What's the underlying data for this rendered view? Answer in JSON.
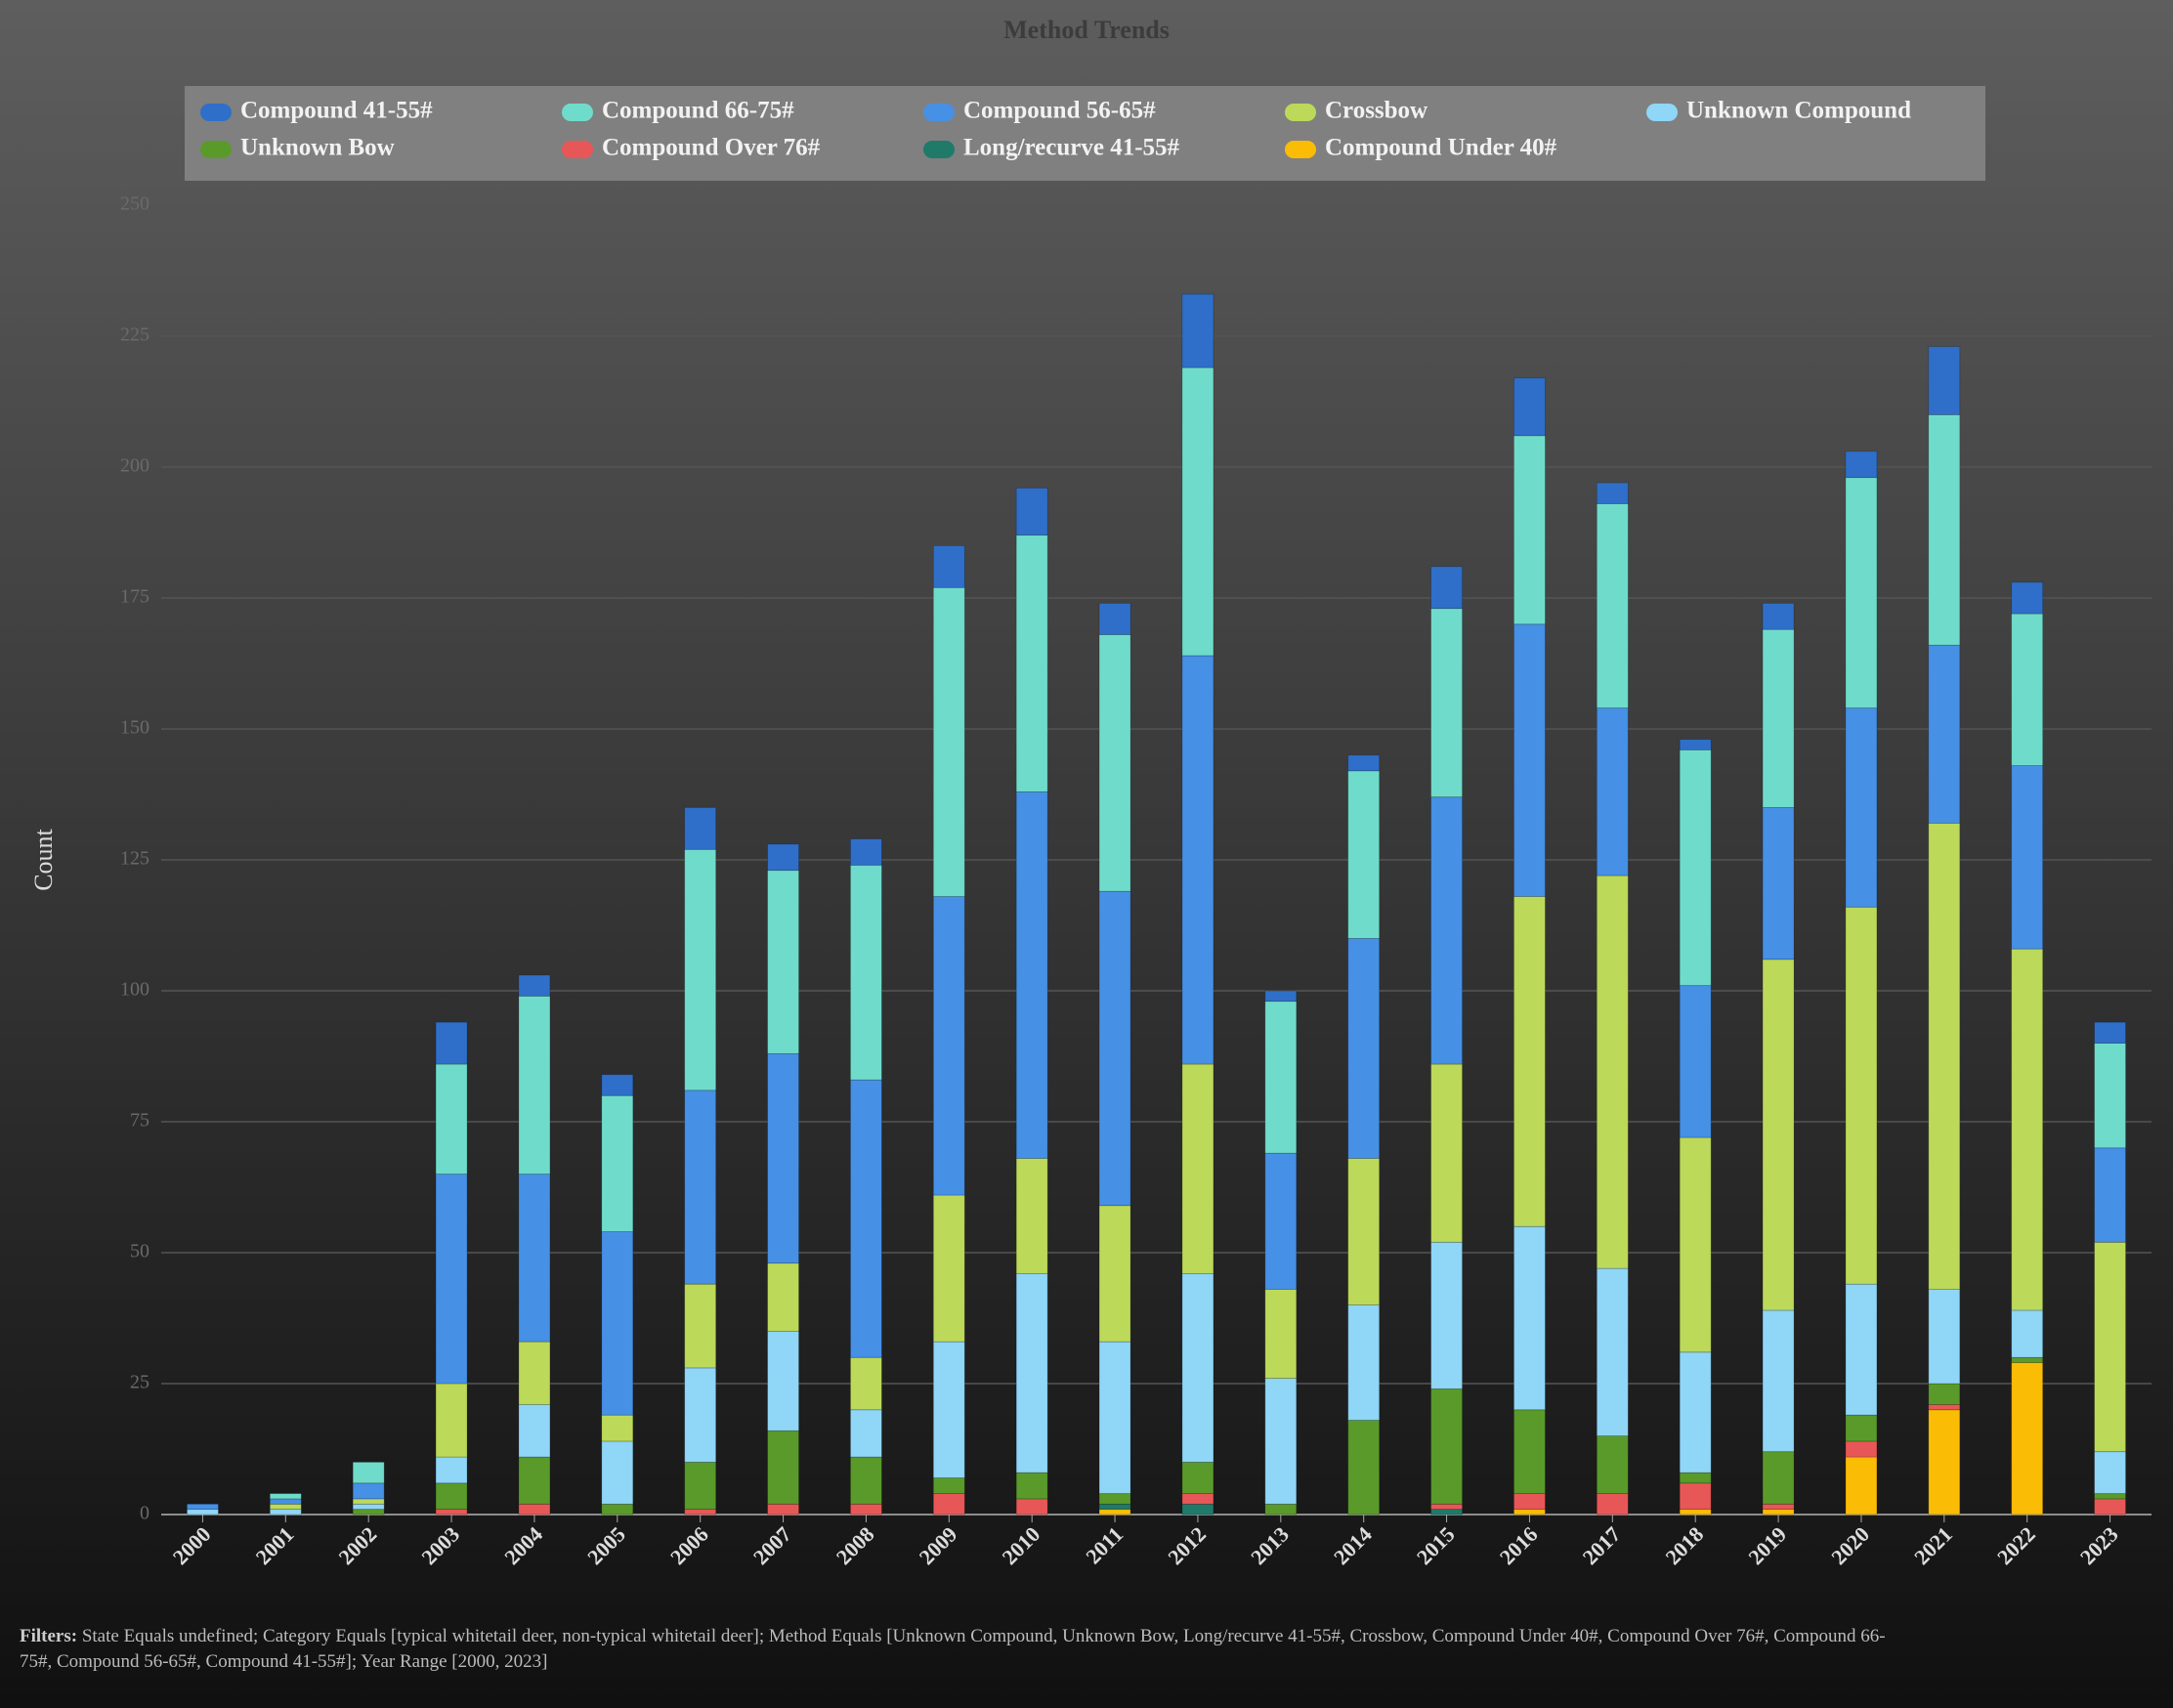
{
  "chart_data": {
    "type": "stacked-bar",
    "title": "Method Trends",
    "y_label": "Count",
    "categories": [
      "2000",
      "2001",
      "2002",
      "2003",
      "2004",
      "2005",
      "2006",
      "2007",
      "2008",
      "2009",
      "2010",
      "2011",
      "2012",
      "2013",
      "2014",
      "2015",
      "2016",
      "2017",
      "2018",
      "2019",
      "2020",
      "2021",
      "2022",
      "2023"
    ],
    "series": [
      {
        "name": "Compound 41-55#",
        "color": "#2f6fc9",
        "values": [
          0,
          0,
          0,
          8,
          4,
          4,
          8,
          5,
          5,
          8,
          9,
          6,
          14,
          2,
          3,
          8,
          11,
          4,
          2,
          5,
          5,
          13,
          6,
          4
        ]
      },
      {
        "name": "Compound 66-75#",
        "color": "#6fdccb",
        "values": [
          0,
          1,
          4,
          21,
          34,
          26,
          46,
          35,
          41,
          59,
          49,
          49,
          55,
          29,
          32,
          36,
          36,
          39,
          45,
          34,
          44,
          44,
          29,
          20
        ]
      },
      {
        "name": "Compound 56-65#",
        "color": "#4690e6",
        "values": [
          1,
          1,
          3,
          40,
          32,
          35,
          37,
          40,
          53,
          57,
          70,
          60,
          78,
          26,
          42,
          51,
          52,
          32,
          29,
          29,
          38,
          34,
          35,
          18
        ]
      },
      {
        "name": "Crossbow",
        "color": "#bcd95a",
        "values": [
          0,
          1,
          1,
          14,
          12,
          5,
          16,
          13,
          10,
          28,
          22,
          26,
          40,
          17,
          28,
          34,
          63,
          75,
          41,
          67,
          72,
          89,
          69,
          40
        ]
      },
      {
        "name": "Unknown Compound",
        "color": "#8fd6f7",
        "values": [
          1,
          1,
          1,
          5,
          10,
          12,
          18,
          19,
          9,
          26,
          38,
          29,
          36,
          24,
          22,
          28,
          35,
          32,
          23,
          27,
          25,
          18,
          9,
          8
        ]
      },
      {
        "name": "Unknown Bow",
        "color": "#5a9a2a",
        "values": [
          0,
          0,
          1,
          5,
          9,
          2,
          9,
          14,
          9,
          3,
          5,
          2,
          6,
          2,
          18,
          22,
          16,
          11,
          2,
          10,
          5,
          4,
          1,
          1
        ]
      },
      {
        "name": "Compound Over 76#",
        "color": "#e85757",
        "values": [
          0,
          0,
          0,
          1,
          2,
          0,
          1,
          2,
          2,
          4,
          3,
          0,
          2,
          0,
          0,
          1,
          3,
          4,
          5,
          1,
          3,
          1,
          0,
          3
        ]
      },
      {
        "name": "Long/recurve 41-55#",
        "color": "#1f7a6a",
        "values": [
          0,
          0,
          0,
          0,
          0,
          0,
          0,
          0,
          0,
          0,
          0,
          1,
          2,
          0,
          0,
          1,
          0,
          0,
          0,
          0,
          0,
          0,
          0,
          0
        ]
      },
      {
        "name": "Compound Under 40#",
        "color": "#fbbc05",
        "values": [
          0,
          0,
          0,
          0,
          0,
          0,
          0,
          0,
          0,
          0,
          0,
          1,
          0,
          0,
          0,
          0,
          1,
          0,
          1,
          1,
          11,
          20,
          29,
          0
        ]
      }
    ],
    "ylim": [
      0,
      250
    ],
    "yticks": [
      0,
      25,
      50,
      75,
      100,
      125,
      150,
      175,
      200,
      225,
      250
    ],
    "grid": true,
    "legend": "top"
  },
  "footer": {
    "label": "Filters:",
    "text": "State Equals undefined; Category Equals [typical whitetail deer, non-typical whitetail deer]; Method Equals [Unknown Compound, Unknown Bow, Long/recurve 41-55#, Crossbow, Compound Under 40#, Compound Over 76#, Compound 66-75#, Compound 56-65#, Compound 41-55#]; Year Range [2000, 2023]"
  }
}
